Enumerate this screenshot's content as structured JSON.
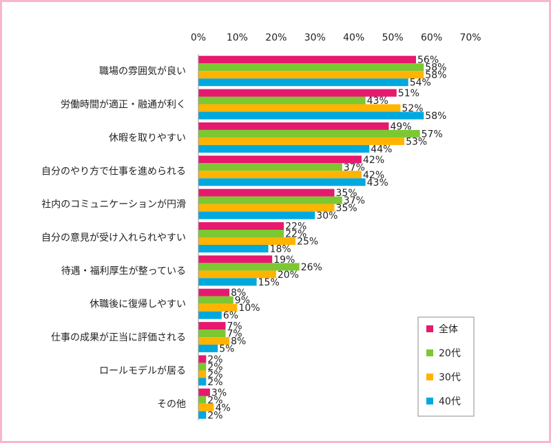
{
  "chart_data": {
    "type": "bar",
    "orientation": "horizontal",
    "title": "",
    "xlabel": "",
    "ylabel": "",
    "xlim": [
      0,
      70
    ],
    "x_ticks": [
      "0%",
      "10%",
      "20%",
      "30%",
      "40%",
      "50%",
      "60%",
      "70%"
    ],
    "grid": false,
    "legend_position": "bottom-right",
    "categories": [
      "職場の雰囲気が良い",
      "労働時間が適正・融通が利く",
      "休暇を取りやすい",
      "自分のやり方で仕事を進められる",
      "社内のコミュニケーションが円滑",
      "自分の意見が受け入れられやすい",
      "待遇・福利厚生が整っている",
      "休職後に復帰しやすい",
      "仕事の成果が正当に評価される",
      "ロールモデルが居る",
      "その他"
    ],
    "series": [
      {
        "name": "全体",
        "color": "#e6196e",
        "values": [
          56,
          51,
          49,
          42,
          35,
          22,
          19,
          8,
          7,
          2,
          3
        ]
      },
      {
        "name": "20代",
        "color": "#7cc832",
        "values": [
          58,
          43,
          57,
          37,
          37,
          22,
          26,
          9,
          7,
          2,
          2
        ]
      },
      {
        "name": "30代",
        "color": "#ffb400",
        "values": [
          58,
          52,
          53,
          42,
          35,
          25,
          20,
          10,
          8,
          2,
          4
        ]
      },
      {
        "name": "40代",
        "color": "#00a8e0",
        "values": [
          54,
          58,
          44,
          43,
          30,
          18,
          15,
          6,
          5,
          2,
          2
        ]
      }
    ],
    "value_suffix": "%"
  }
}
